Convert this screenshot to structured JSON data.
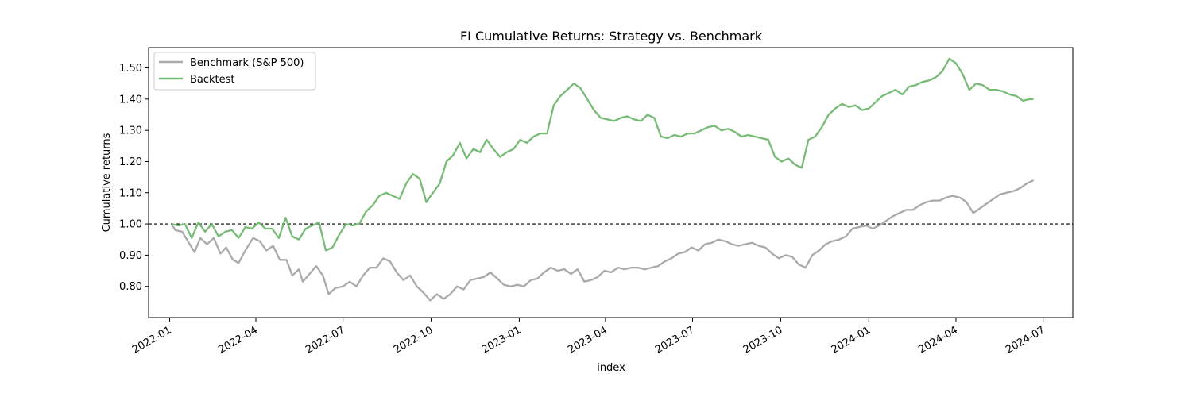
{
  "chart_data": {
    "type": "line",
    "title": "FI Cumulative Returns: Strategy vs. Benchmark",
    "xlabel": "index",
    "ylabel": "Cumulative returns",
    "x_range": [
      "2021-12-10",
      "2024-08-01"
    ],
    "ylim": [
      0.7,
      1.565
    ],
    "x_ticks": [
      "2022-01",
      "2022-04",
      "2022-07",
      "2022-10",
      "2023-01",
      "2023-04",
      "2023-07",
      "2023-10",
      "2024-01",
      "2024-04",
      "2024-07"
    ],
    "y_ticks": [
      "0.80",
      "0.90",
      "1.00",
      "1.10",
      "1.20",
      "1.30",
      "1.40",
      "1.50"
    ],
    "reference_line": {
      "y": 1.0,
      "style": "dashed",
      "color": "#000000"
    },
    "grid": false,
    "legend_position": "top-left",
    "series": [
      {
        "name": "Benchmark (S&P 500)",
        "color": "#aaaaaa",
        "points": [
          [
            "2022-01-03",
            1.0
          ],
          [
            "2022-01-07",
            0.98
          ],
          [
            "2022-01-14",
            0.975
          ],
          [
            "2022-01-21",
            0.94
          ],
          [
            "2022-01-27",
            0.91
          ],
          [
            "2022-02-02",
            0.955
          ],
          [
            "2022-02-09",
            0.935
          ],
          [
            "2022-02-16",
            0.955
          ],
          [
            "2022-02-23",
            0.905
          ],
          [
            "2022-03-01",
            0.925
          ],
          [
            "2022-03-08",
            0.885
          ],
          [
            "2022-03-14",
            0.875
          ],
          [
            "2022-03-21",
            0.915
          ],
          [
            "2022-03-29",
            0.955
          ],
          [
            "2022-04-05",
            0.945
          ],
          [
            "2022-04-12",
            0.915
          ],
          [
            "2022-04-19",
            0.93
          ],
          [
            "2022-04-26",
            0.885
          ],
          [
            "2022-05-03",
            0.885
          ],
          [
            "2022-05-09",
            0.835
          ],
          [
            "2022-05-16",
            0.855
          ],
          [
            "2022-05-20",
            0.815
          ],
          [
            "2022-05-27",
            0.84
          ],
          [
            "2022-06-03",
            0.865
          ],
          [
            "2022-06-10",
            0.835
          ],
          [
            "2022-06-16",
            0.775
          ],
          [
            "2022-06-23",
            0.795
          ],
          [
            "2022-07-01",
            0.8
          ],
          [
            "2022-07-08",
            0.815
          ],
          [
            "2022-07-15",
            0.8
          ],
          [
            "2022-07-22",
            0.835
          ],
          [
            "2022-07-29",
            0.86
          ],
          [
            "2022-08-05",
            0.86
          ],
          [
            "2022-08-12",
            0.89
          ],
          [
            "2022-08-19",
            0.88
          ],
          [
            "2022-08-26",
            0.845
          ],
          [
            "2022-09-02",
            0.82
          ],
          [
            "2022-09-09",
            0.835
          ],
          [
            "2022-09-16",
            0.8
          ],
          [
            "2022-09-23",
            0.78
          ],
          [
            "2022-09-30",
            0.755
          ],
          [
            "2022-10-07",
            0.775
          ],
          [
            "2022-10-14",
            0.76
          ],
          [
            "2022-10-21",
            0.775
          ],
          [
            "2022-10-28",
            0.8
          ],
          [
            "2022-11-04",
            0.79
          ],
          [
            "2022-11-11",
            0.82
          ],
          [
            "2022-11-18",
            0.825
          ],
          [
            "2022-11-25",
            0.83
          ],
          [
            "2022-12-02",
            0.845
          ],
          [
            "2022-12-09",
            0.825
          ],
          [
            "2022-12-16",
            0.805
          ],
          [
            "2022-12-23",
            0.8
          ],
          [
            "2022-12-30",
            0.805
          ],
          [
            "2023-01-06",
            0.8
          ],
          [
            "2023-01-13",
            0.82
          ],
          [
            "2023-01-20",
            0.825
          ],
          [
            "2023-01-27",
            0.845
          ],
          [
            "2023-02-03",
            0.86
          ],
          [
            "2023-02-10",
            0.85
          ],
          [
            "2023-02-17",
            0.855
          ],
          [
            "2023-02-24",
            0.84
          ],
          [
            "2023-03-03",
            0.855
          ],
          [
            "2023-03-10",
            0.815
          ],
          [
            "2023-03-17",
            0.82
          ],
          [
            "2023-03-24",
            0.83
          ],
          [
            "2023-03-31",
            0.85
          ],
          [
            "2023-04-07",
            0.845
          ],
          [
            "2023-04-14",
            0.86
          ],
          [
            "2023-04-21",
            0.855
          ],
          [
            "2023-04-28",
            0.86
          ],
          [
            "2023-05-05",
            0.86
          ],
          [
            "2023-05-12",
            0.855
          ],
          [
            "2023-05-19",
            0.86
          ],
          [
            "2023-05-26",
            0.865
          ],
          [
            "2023-06-02",
            0.88
          ],
          [
            "2023-06-09",
            0.89
          ],
          [
            "2023-06-16",
            0.905
          ],
          [
            "2023-06-23",
            0.91
          ],
          [
            "2023-06-30",
            0.925
          ],
          [
            "2023-07-07",
            0.915
          ],
          [
            "2023-07-14",
            0.935
          ],
          [
            "2023-07-21",
            0.94
          ],
          [
            "2023-07-28",
            0.95
          ],
          [
            "2023-08-04",
            0.945
          ],
          [
            "2023-08-11",
            0.935
          ],
          [
            "2023-08-18",
            0.93
          ],
          [
            "2023-08-25",
            0.935
          ],
          [
            "2023-09-01",
            0.94
          ],
          [
            "2023-09-08",
            0.93
          ],
          [
            "2023-09-15",
            0.925
          ],
          [
            "2023-09-22",
            0.905
          ],
          [
            "2023-09-29",
            0.89
          ],
          [
            "2023-10-06",
            0.9
          ],
          [
            "2023-10-13",
            0.895
          ],
          [
            "2023-10-20",
            0.87
          ],
          [
            "2023-10-27",
            0.86
          ],
          [
            "2023-11-03",
            0.9
          ],
          [
            "2023-11-10",
            0.915
          ],
          [
            "2023-11-17",
            0.935
          ],
          [
            "2023-11-24",
            0.945
          ],
          [
            "2023-12-01",
            0.95
          ],
          [
            "2023-12-08",
            0.96
          ],
          [
            "2023-12-15",
            0.985
          ],
          [
            "2023-12-22",
            0.99
          ],
          [
            "2023-12-29",
            0.995
          ],
          [
            "2024-01-05",
            0.985
          ],
          [
            "2024-01-12",
            0.995
          ],
          [
            "2024-01-19",
            1.01
          ],
          [
            "2024-01-26",
            1.025
          ],
          [
            "2024-02-02",
            1.035
          ],
          [
            "2024-02-09",
            1.045
          ],
          [
            "2024-02-16",
            1.045
          ],
          [
            "2024-02-23",
            1.06
          ],
          [
            "2024-03-01",
            1.07
          ],
          [
            "2024-03-08",
            1.075
          ],
          [
            "2024-03-15",
            1.075
          ],
          [
            "2024-03-22",
            1.085
          ],
          [
            "2024-03-28",
            1.09
          ],
          [
            "2024-04-05",
            1.085
          ],
          [
            "2024-04-12",
            1.07
          ],
          [
            "2024-04-19",
            1.035
          ],
          [
            "2024-04-26",
            1.05
          ],
          [
            "2024-05-03",
            1.065
          ],
          [
            "2024-05-10",
            1.08
          ],
          [
            "2024-05-17",
            1.095
          ],
          [
            "2024-05-24",
            1.1
          ],
          [
            "2024-05-31",
            1.105
          ],
          [
            "2024-06-07",
            1.115
          ],
          [
            "2024-06-14",
            1.13
          ],
          [
            "2024-06-21",
            1.14
          ]
        ]
      },
      {
        "name": "Backtest",
        "color": "#77bb77",
        "points": [
          [
            "2022-01-03",
            1.0
          ],
          [
            "2022-01-10",
            0.995
          ],
          [
            "2022-01-17",
            1.0
          ],
          [
            "2022-01-24",
            0.955
          ],
          [
            "2022-01-31",
            1.005
          ],
          [
            "2022-02-07",
            0.975
          ],
          [
            "2022-02-14",
            1.0
          ],
          [
            "2022-02-21",
            0.96
          ],
          [
            "2022-02-28",
            0.975
          ],
          [
            "2022-03-07",
            0.98
          ],
          [
            "2022-03-14",
            0.955
          ],
          [
            "2022-03-21",
            0.99
          ],
          [
            "2022-03-28",
            0.985
          ],
          [
            "2022-04-04",
            1.005
          ],
          [
            "2022-04-11",
            0.985
          ],
          [
            "2022-04-18",
            0.985
          ],
          [
            "2022-04-25",
            0.955
          ],
          [
            "2022-05-02",
            1.02
          ],
          [
            "2022-05-09",
            0.96
          ],
          [
            "2022-05-16",
            0.95
          ],
          [
            "2022-05-23",
            0.985
          ],
          [
            "2022-05-30",
            0.995
          ],
          [
            "2022-06-06",
            1.005
          ],
          [
            "2022-06-13",
            0.915
          ],
          [
            "2022-06-20",
            0.925
          ],
          [
            "2022-06-27",
            0.965
          ],
          [
            "2022-07-04",
            1.0
          ],
          [
            "2022-07-11",
            0.995
          ],
          [
            "2022-07-18",
            1.0
          ],
          [
            "2022-07-25",
            1.04
          ],
          [
            "2022-08-01",
            1.06
          ],
          [
            "2022-08-08",
            1.09
          ],
          [
            "2022-08-15",
            1.1
          ],
          [
            "2022-08-22",
            1.09
          ],
          [
            "2022-08-29",
            1.08
          ],
          [
            "2022-09-05",
            1.13
          ],
          [
            "2022-09-12",
            1.16
          ],
          [
            "2022-09-19",
            1.145
          ],
          [
            "2022-09-26",
            1.07
          ],
          [
            "2022-10-03",
            1.1
          ],
          [
            "2022-10-10",
            1.13
          ],
          [
            "2022-10-17",
            1.2
          ],
          [
            "2022-10-24",
            1.22
          ],
          [
            "2022-10-31",
            1.26
          ],
          [
            "2022-11-07",
            1.21
          ],
          [
            "2022-11-14",
            1.24
          ],
          [
            "2022-11-21",
            1.23
          ],
          [
            "2022-11-28",
            1.27
          ],
          [
            "2022-12-05",
            1.24
          ],
          [
            "2022-12-12",
            1.215
          ],
          [
            "2022-12-19",
            1.23
          ],
          [
            "2022-12-26",
            1.24
          ],
          [
            "2023-01-02",
            1.27
          ],
          [
            "2023-01-09",
            1.26
          ],
          [
            "2023-01-16",
            1.28
          ],
          [
            "2023-01-23",
            1.29
          ],
          [
            "2023-01-30",
            1.29
          ],
          [
            "2023-02-06",
            1.38
          ],
          [
            "2023-02-13",
            1.41
          ],
          [
            "2023-02-20",
            1.43
          ],
          [
            "2023-02-27",
            1.45
          ],
          [
            "2023-03-06",
            1.435
          ],
          [
            "2023-03-13",
            1.4
          ],
          [
            "2023-03-20",
            1.365
          ],
          [
            "2023-03-27",
            1.34
          ],
          [
            "2023-04-03",
            1.335
          ],
          [
            "2023-04-10",
            1.33
          ],
          [
            "2023-04-17",
            1.34
          ],
          [
            "2023-04-24",
            1.345
          ],
          [
            "2023-05-01",
            1.335
          ],
          [
            "2023-05-08",
            1.33
          ],
          [
            "2023-05-15",
            1.35
          ],
          [
            "2023-05-22",
            1.34
          ],
          [
            "2023-05-29",
            1.28
          ],
          [
            "2023-06-05",
            1.275
          ],
          [
            "2023-06-12",
            1.285
          ],
          [
            "2023-06-19",
            1.28
          ],
          [
            "2023-06-26",
            1.29
          ],
          [
            "2023-07-03",
            1.29
          ],
          [
            "2023-07-10",
            1.3
          ],
          [
            "2023-07-17",
            1.31
          ],
          [
            "2023-07-24",
            1.315
          ],
          [
            "2023-07-31",
            1.3
          ],
          [
            "2023-08-07",
            1.305
          ],
          [
            "2023-08-14",
            1.295
          ],
          [
            "2023-08-21",
            1.28
          ],
          [
            "2023-08-28",
            1.285
          ],
          [
            "2023-09-04",
            1.28
          ],
          [
            "2023-09-11",
            1.275
          ],
          [
            "2023-09-18",
            1.27
          ],
          [
            "2023-09-25",
            1.215
          ],
          [
            "2023-10-02",
            1.2
          ],
          [
            "2023-10-09",
            1.21
          ],
          [
            "2023-10-16",
            1.19
          ],
          [
            "2023-10-23",
            1.18
          ],
          [
            "2023-10-30",
            1.27
          ],
          [
            "2023-11-06",
            1.28
          ],
          [
            "2023-11-13",
            1.31
          ],
          [
            "2023-11-20",
            1.35
          ],
          [
            "2023-11-27",
            1.37
          ],
          [
            "2023-12-04",
            1.385
          ],
          [
            "2023-12-11",
            1.375
          ],
          [
            "2023-12-18",
            1.38
          ],
          [
            "2023-12-25",
            1.365
          ],
          [
            "2024-01-01",
            1.37
          ],
          [
            "2024-01-08",
            1.39
          ],
          [
            "2024-01-15",
            1.41
          ],
          [
            "2024-01-22",
            1.42
          ],
          [
            "2024-01-29",
            1.43
          ],
          [
            "2024-02-05",
            1.415
          ],
          [
            "2024-02-12",
            1.44
          ],
          [
            "2024-02-19",
            1.445
          ],
          [
            "2024-02-26",
            1.455
          ],
          [
            "2024-03-04",
            1.46
          ],
          [
            "2024-03-11",
            1.47
          ],
          [
            "2024-03-18",
            1.49
          ],
          [
            "2024-03-25",
            1.53
          ],
          [
            "2024-04-01",
            1.515
          ],
          [
            "2024-04-08",
            1.48
          ],
          [
            "2024-04-15",
            1.43
          ],
          [
            "2024-04-22",
            1.45
          ],
          [
            "2024-04-29",
            1.445
          ],
          [
            "2024-05-06",
            1.43
          ],
          [
            "2024-05-13",
            1.43
          ],
          [
            "2024-05-20",
            1.425
          ],
          [
            "2024-05-27",
            1.415
          ],
          [
            "2024-06-03",
            1.41
          ],
          [
            "2024-06-10",
            1.395
          ],
          [
            "2024-06-17",
            1.4
          ],
          [
            "2024-06-21",
            1.4
          ]
        ]
      }
    ]
  }
}
